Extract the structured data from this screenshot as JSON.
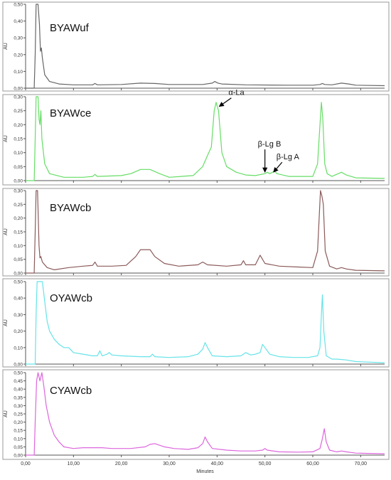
{
  "chart_data": [
    {
      "type": "line",
      "label": "BYAWuf",
      "color": "#666666",
      "ylabel": "AU",
      "yticks": [
        "0,00",
        "0,10",
        "0,20",
        "0,30",
        "0,40",
        "0,50"
      ],
      "ylim": [
        0,
        0.5
      ],
      "xlim": [
        0,
        75
      ],
      "points": [
        [
          0,
          0
        ],
        [
          1.8,
          0
        ],
        [
          2.0,
          0.2
        ],
        [
          2.2,
          0.5
        ],
        [
          2.6,
          0.5
        ],
        [
          2.9,
          0.38
        ],
        [
          3.1,
          0.22
        ],
        [
          3.3,
          0.24
        ],
        [
          3.5,
          0.18
        ],
        [
          4,
          0.08
        ],
        [
          5,
          0.04
        ],
        [
          7,
          0.025
        ],
        [
          10,
          0.02
        ],
        [
          14,
          0.02
        ],
        [
          14.5,
          0.028
        ],
        [
          15,
          0.02
        ],
        [
          20,
          0.022
        ],
        [
          24,
          0.03
        ],
        [
          27,
          0.028
        ],
        [
          30,
          0.022
        ],
        [
          37,
          0.022
        ],
        [
          39,
          0.03
        ],
        [
          39.5,
          0.04
        ],
        [
          40.2,
          0.03
        ],
        [
          41,
          0.025
        ],
        [
          46,
          0.02
        ],
        [
          55,
          0.018
        ],
        [
          60,
          0.018
        ],
        [
          61.5,
          0.022
        ],
        [
          62,
          0.028
        ],
        [
          62.5,
          0.022
        ],
        [
          64,
          0.02
        ],
        [
          66,
          0.03
        ],
        [
          67.5,
          0.025
        ],
        [
          69,
          0.018
        ],
        [
          75,
          0.015
        ]
      ],
      "annotations": []
    },
    {
      "type": "line",
      "label": "BYAWce",
      "color": "#66dd66",
      "ylabel": "AU",
      "yticks": [
        "0,00",
        "0,05",
        "0,10",
        "0,15",
        "0,20",
        "0,25",
        "0,30"
      ],
      "ylim": [
        0,
        0.3
      ],
      "xlim": [
        0,
        75
      ],
      "points": [
        [
          0,
          0
        ],
        [
          1.8,
          0
        ],
        [
          2.0,
          0.15
        ],
        [
          2.2,
          0.3
        ],
        [
          2.6,
          0.3
        ],
        [
          2.8,
          0.22
        ],
        [
          3.0,
          0.2
        ],
        [
          3.2,
          0.25
        ],
        [
          3.4,
          0.15
        ],
        [
          4,
          0.06
        ],
        [
          5,
          0.025
        ],
        [
          8,
          0.012
        ],
        [
          12,
          0.012
        ],
        [
          14,
          0.015
        ],
        [
          14.5,
          0.022
        ],
        [
          15,
          0.015
        ],
        [
          20,
          0.018
        ],
        [
          22,
          0.025
        ],
        [
          24,
          0.04
        ],
        [
          26,
          0.04
        ],
        [
          28,
          0.025
        ],
        [
          30,
          0.012
        ],
        [
          35,
          0.018
        ],
        [
          37,
          0.05
        ],
        [
          38,
          0.09
        ],
        [
          38.8,
          0.12
        ],
        [
          39.4,
          0.25
        ],
        [
          39.8,
          0.28
        ],
        [
          40.3,
          0.25
        ],
        [
          41,
          0.1
        ],
        [
          42,
          0.05
        ],
        [
          44,
          0.03
        ],
        [
          46,
          0.02
        ],
        [
          48,
          0.018
        ],
        [
          50,
          0.025
        ],
        [
          50.5,
          0.03
        ],
        [
          51,
          0.025
        ],
        [
          51.6,
          0.03
        ],
        [
          52,
          0.035
        ],
        [
          52.5,
          0.025
        ],
        [
          55,
          0.015
        ],
        [
          60,
          0.015
        ],
        [
          61,
          0.06
        ],
        [
          61.5,
          0.2
        ],
        [
          61.8,
          0.28
        ],
        [
          62.1,
          0.22
        ],
        [
          62.5,
          0.06
        ],
        [
          63,
          0.025
        ],
        [
          64,
          0.015
        ],
        [
          66,
          0.03
        ],
        [
          67,
          0.02
        ],
        [
          69,
          0.01
        ],
        [
          75,
          0.008
        ]
      ],
      "annotations": [
        {
          "text": "α-La",
          "x": 40,
          "y": 0.26
        },
        {
          "text": "β-Lg B",
          "x": 50,
          "y": 0.02
        },
        {
          "text": "β-Lg A",
          "x": 51.5,
          "y": 0.02
        }
      ]
    },
    {
      "type": "line",
      "label": "BYAWcb",
      "color": "#8b5a5a",
      "ylabel": "AU",
      "yticks": [
        "0,00",
        "0,05",
        "0,10",
        "0,15",
        "0,20",
        "0,25",
        "0,30"
      ],
      "ylim": [
        0,
        0.3
      ],
      "xlim": [
        0,
        75
      ],
      "points": [
        [
          0,
          0
        ],
        [
          1.8,
          0
        ],
        [
          2.0,
          0.15
        ],
        [
          2.2,
          0.3
        ],
        [
          2.5,
          0.3
        ],
        [
          2.8,
          0.1
        ],
        [
          3.0,
          0.055
        ],
        [
          3.2,
          0.06
        ],
        [
          3.5,
          0.04
        ],
        [
          4.5,
          0.02
        ],
        [
          6,
          0.012
        ],
        [
          9,
          0.02
        ],
        [
          12,
          0.025
        ],
        [
          14,
          0.028
        ],
        [
          14.5,
          0.04
        ],
        [
          15,
          0.025
        ],
        [
          18,
          0.025
        ],
        [
          21,
          0.028
        ],
        [
          23,
          0.06
        ],
        [
          24,
          0.085
        ],
        [
          26,
          0.085
        ],
        [
          27,
          0.06
        ],
        [
          29,
          0.035
        ],
        [
          32,
          0.025
        ],
        [
          36,
          0.03
        ],
        [
          37,
          0.04
        ],
        [
          38,
          0.03
        ],
        [
          42,
          0.025
        ],
        [
          45,
          0.03
        ],
        [
          45.5,
          0.045
        ],
        [
          46,
          0.03
        ],
        [
          48,
          0.03
        ],
        [
          49,
          0.065
        ],
        [
          49.5,
          0.05
        ],
        [
          50,
          0.035
        ],
        [
          53,
          0.025
        ],
        [
          57,
          0.022
        ],
        [
          60,
          0.02
        ],
        [
          61,
          0.08
        ],
        [
          61.6,
          0.3
        ],
        [
          61.9,
          0.28
        ],
        [
          62.2,
          0.25
        ],
        [
          62.6,
          0.08
        ],
        [
          63.5,
          0.025
        ],
        [
          65,
          0.015
        ],
        [
          66,
          0.02
        ],
        [
          67,
          0.015
        ],
        [
          69,
          0.01
        ],
        [
          75,
          0.008
        ]
      ],
      "annotations": []
    },
    {
      "type": "line",
      "label": "OYAWcb",
      "color": "#66e3e8",
      "ylabel": "AU",
      "yticks": [
        "0,00",
        "0,10",
        "0,20",
        "0,30",
        "0,40",
        "0,50"
      ],
      "ylim": [
        0,
        0.5
      ],
      "xlim": [
        0,
        75
      ],
      "points": [
        [
          0,
          0
        ],
        [
          2.0,
          0
        ],
        [
          2.2,
          0.3
        ],
        [
          2.4,
          0.5
        ],
        [
          3.5,
          0.5
        ],
        [
          4.0,
          0.38
        ],
        [
          4.5,
          0.26
        ],
        [
          5,
          0.2
        ],
        [
          6,
          0.15
        ],
        [
          7,
          0.12
        ],
        [
          8,
          0.1
        ],
        [
          9,
          0.1
        ],
        [
          10,
          0.07
        ],
        [
          12,
          0.06
        ],
        [
          14,
          0.05
        ],
        [
          15,
          0.05
        ],
        [
          15.5,
          0.08
        ],
        [
          16,
          0.05
        ],
        [
          17,
          0.06
        ],
        [
          17.5,
          0.07
        ],
        [
          18,
          0.055
        ],
        [
          20,
          0.05
        ],
        [
          24,
          0.045
        ],
        [
          26,
          0.045
        ],
        [
          26.5,
          0.06
        ],
        [
          27,
          0.045
        ],
        [
          30,
          0.04
        ],
        [
          34,
          0.045
        ],
        [
          36,
          0.06
        ],
        [
          37,
          0.09
        ],
        [
          37.5,
          0.13
        ],
        [
          38,
          0.1
        ],
        [
          39,
          0.05
        ],
        [
          42,
          0.045
        ],
        [
          45,
          0.05
        ],
        [
          46,
          0.07
        ],
        [
          47,
          0.055
        ],
        [
          48,
          0.06
        ],
        [
          49,
          0.07
        ],
        [
          49.5,
          0.12
        ],
        [
          50,
          0.1
        ],
        [
          51,
          0.06
        ],
        [
          53,
          0.045
        ],
        [
          56,
          0.04
        ],
        [
          59,
          0.04
        ],
        [
          61,
          0.05
        ],
        [
          61.5,
          0.1
        ],
        [
          61.8,
          0.3
        ],
        [
          62.0,
          0.42
        ],
        [
          62.3,
          0.2
        ],
        [
          62.8,
          0.05
        ],
        [
          64,
          0.03
        ],
        [
          65,
          0.03
        ],
        [
          67,
          0.025
        ],
        [
          69,
          0.015
        ],
        [
          75,
          0.008
        ]
      ],
      "annotations": []
    },
    {
      "type": "line",
      "label": "CYAWcb",
      "color": "#dd66dd",
      "ylabel": "AU",
      "yticks": [
        "0,00",
        "0,05",
        "0,10",
        "0,15",
        "0,20",
        "0,25",
        "0,30",
        "0,35",
        "0,40",
        "0,45",
        "0,50"
      ],
      "ylim": [
        0,
        0.5
      ],
      "xlim": [
        0,
        75
      ],
      "points": [
        [
          0,
          0
        ],
        [
          1.8,
          0
        ],
        [
          2.0,
          0.2
        ],
        [
          2.3,
          0.45
        ],
        [
          2.6,
          0.5
        ],
        [
          3.0,
          0.45
        ],
        [
          3.4,
          0.5
        ],
        [
          3.8,
          0.42
        ],
        [
          4.3,
          0.3
        ],
        [
          5,
          0.2
        ],
        [
          6,
          0.12
        ],
        [
          7,
          0.08
        ],
        [
          8,
          0.05
        ],
        [
          10,
          0.04
        ],
        [
          12,
          0.045
        ],
        [
          14,
          0.045
        ],
        [
          16,
          0.045
        ],
        [
          18,
          0.04
        ],
        [
          22,
          0.04
        ],
        [
          25,
          0.05
        ],
        [
          26,
          0.065
        ],
        [
          27,
          0.07
        ],
        [
          29,
          0.05
        ],
        [
          31,
          0.04
        ],
        [
          34,
          0.035
        ],
        [
          36,
          0.045
        ],
        [
          37,
          0.07
        ],
        [
          37.5,
          0.11
        ],
        [
          38,
          0.08
        ],
        [
          39,
          0.04
        ],
        [
          42,
          0.03
        ],
        [
          45,
          0.025
        ],
        [
          48,
          0.025
        ],
        [
          49.5,
          0.03
        ],
        [
          50,
          0.04
        ],
        [
          50.5,
          0.03
        ],
        [
          53,
          0.02
        ],
        [
          57,
          0.018
        ],
        [
          60,
          0.02
        ],
        [
          61.5,
          0.04
        ],
        [
          62,
          0.1
        ],
        [
          62.4,
          0.16
        ],
        [
          62.8,
          0.08
        ],
        [
          63.5,
          0.03
        ],
        [
          65,
          0.02
        ],
        [
          66,
          0.025
        ],
        [
          67,
          0.02
        ],
        [
          69,
          0.012
        ],
        [
          75,
          0.008
        ]
      ],
      "annotations": []
    }
  ],
  "x_axis": {
    "xlabel": "Minutes",
    "ticks": [
      "0,00",
      "10,00",
      "20,00",
      "30,00",
      "40,00",
      "50,00",
      "60,00",
      "70,00"
    ]
  }
}
